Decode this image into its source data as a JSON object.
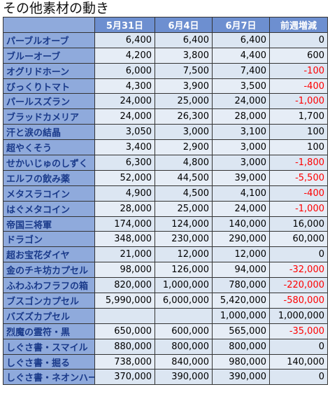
{
  "title": "その他素材の動き",
  "columns": [
    "",
    "5月31日",
    "6月4日",
    "6月7日",
    "前週増減"
  ],
  "rows": [
    {
      "name": "パーブルオーブ",
      "v1": "6,400",
      "v2": "6,400",
      "v3": "6,400",
      "diff": "0",
      "neg": false
    },
    {
      "name": "ブルーオーブ",
      "v1": "4,200",
      "v2": "3,800",
      "v3": "4,400",
      "diff": "600",
      "neg": false
    },
    {
      "name": "オグリドホーン",
      "v1": "6,000",
      "v2": "7,500",
      "v3": "7,400",
      "diff": "-100",
      "neg": true
    },
    {
      "name": "びっくりトマト",
      "v1": "4,300",
      "v2": "3,900",
      "v3": "3,500",
      "diff": "-400",
      "neg": true
    },
    {
      "name": "パールスズラン",
      "v1": "24,000",
      "v2": "25,000",
      "v3": "24,000",
      "diff": "-1,000",
      "neg": true
    },
    {
      "name": "ブラッドカメリア",
      "v1": "24,000",
      "v2": "26,300",
      "v3": "28,000",
      "diff": "1,700",
      "neg": false
    },
    {
      "name": "汗と涙の結晶",
      "v1": "3,050",
      "v2": "3,000",
      "v3": "3,100",
      "diff": "100",
      "neg": false
    },
    {
      "name": "超やくそう",
      "v1": "3,400",
      "v2": "2,900",
      "v3": "3,000",
      "diff": "100",
      "neg": false
    },
    {
      "name": "せかいじゅのしずく",
      "v1": "6,300",
      "v2": "4,800",
      "v3": "3,000",
      "diff": "-1,800",
      "neg": true
    },
    {
      "name": "エルフの飲み薬",
      "v1": "52,000",
      "v2": "44,500",
      "v3": "39,000",
      "diff": "-5,500",
      "neg": true
    },
    {
      "name": "メタスラコイン",
      "v1": "4,900",
      "v2": "4,500",
      "v3": "4,100",
      "diff": "-400",
      "neg": true
    },
    {
      "name": "はぐメタコイン",
      "v1": "28,000",
      "v2": "25,000",
      "v3": "24,000",
      "diff": "-1,000",
      "neg": true
    },
    {
      "name": "帝国三将軍",
      "v1": "174,000",
      "v2": "124,000",
      "v3": "140,000",
      "diff": "16,000",
      "neg": false
    },
    {
      "name": "ドラゴン",
      "v1": "348,000",
      "v2": "230,000",
      "v3": "290,000",
      "diff": "60,000",
      "neg": false
    },
    {
      "name": "超お宝花ダイヤ",
      "v1": "21,000",
      "v2": "12,000",
      "v3": "12,000",
      "diff": "0",
      "neg": false
    },
    {
      "name": "金のチキ坊カプセル",
      "v1": "98,000",
      "v2": "126,000",
      "v3": "94,000",
      "diff": "-32,000",
      "neg": true
    },
    {
      "name": "ふわふわフラフの箱",
      "v1": "820,000",
      "v2": "1,000,000",
      "v3": "780,000",
      "diff": "-220,000",
      "neg": true
    },
    {
      "name": "ブスゴンカプセル",
      "v1": "5,990,000",
      "v2": "6,000,000",
      "v3": "5,420,000",
      "diff": "-580,000",
      "neg": true
    },
    {
      "name": "バズズカプセル",
      "v1": "",
      "v2": "",
      "v3": "1,000,000",
      "diff": "1,000,000",
      "neg": false
    },
    {
      "name": "烈魔の霊符・黒",
      "v1": "650,000",
      "v2": "600,000",
      "v3": "565,000",
      "diff": "-35,000",
      "neg": true
    },
    {
      "name": "しぐさ書・スマイル",
      "v1": "880,000",
      "v2": "800,000",
      "v3": "800,000",
      "diff": "0",
      "neg": false
    },
    {
      "name": "しぐさ書・掘る",
      "v1": "738,000",
      "v2": "840,000",
      "v3": "980,000",
      "diff": "140,000",
      "neg": false
    },
    {
      "name": "しぐさ書・ネオンハート",
      "v1": "370,000",
      "v2": "390,000",
      "v3": "390,000",
      "diff": "0",
      "neg": false
    }
  ]
}
